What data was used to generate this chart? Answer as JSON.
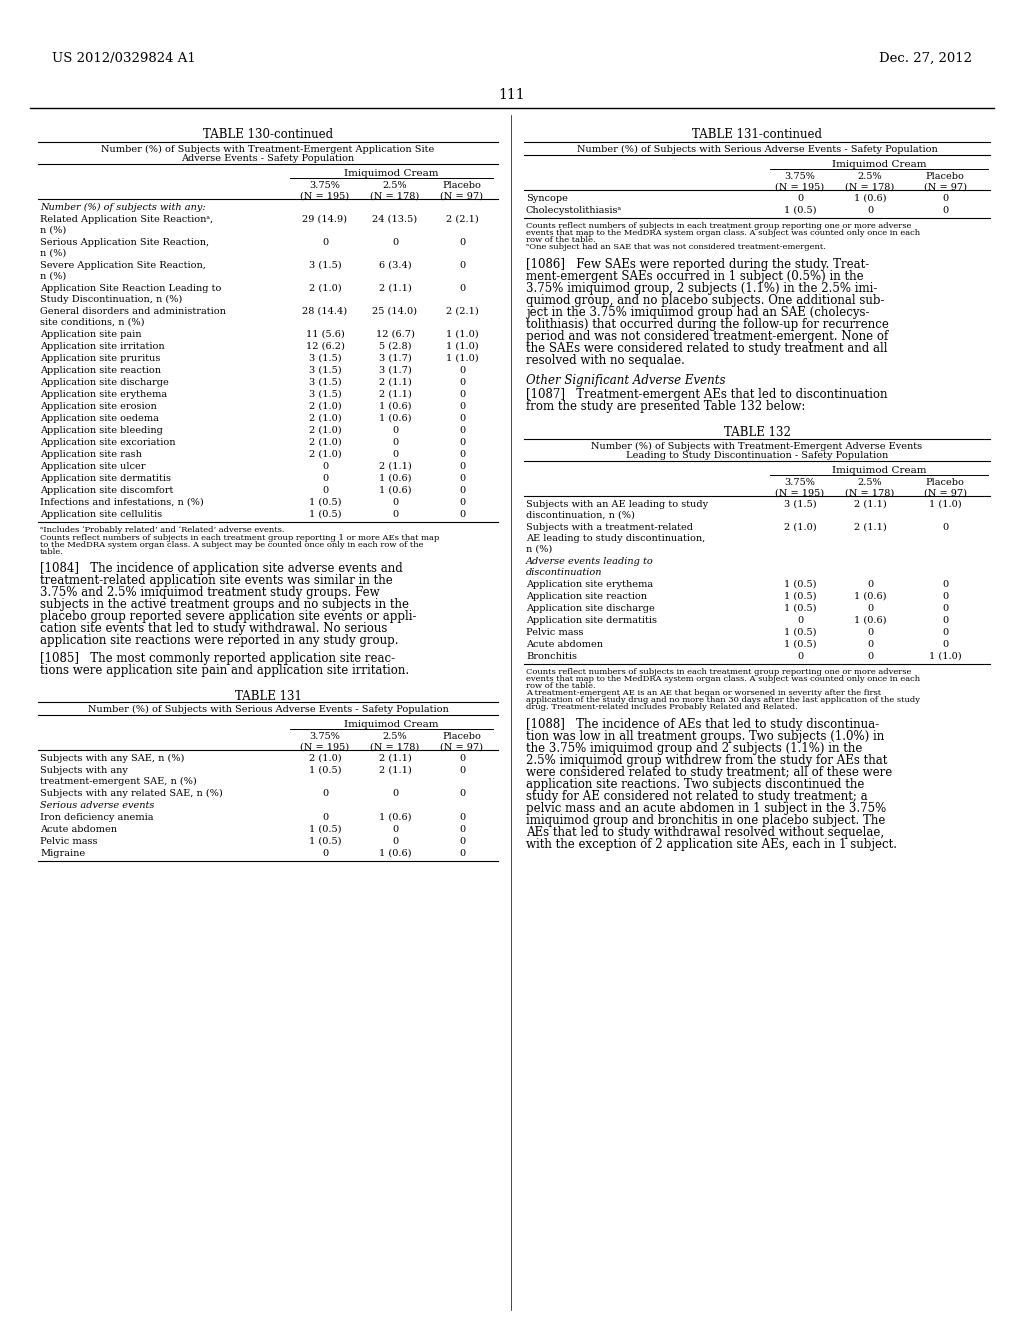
{
  "page_header_left": "US 2012/0329824 A1",
  "page_header_right": "Dec. 27, 2012",
  "page_number": "111",
  "background_color": "#ffffff",
  "left_col": {
    "table130_title": "TABLE 130-continued",
    "table130_sub1": "Number (%) of Subjects with Treatment-Emergent Application Site",
    "table130_sub2": "Adverse Events - Safety Population",
    "cream_header": "Imiquimod Cream",
    "col1_hdr": "3.75%\n(N = 195)",
    "col2_hdr": "2.5%\n(N = 178)",
    "col3_hdr": "Placebo\n(N = 97)",
    "rows130": [
      {
        "label": "Number (%) of subjects with any:",
        "v1": "",
        "v2": "",
        "v3": "",
        "section": true,
        "lines": 1
      },
      {
        "label": "Related Application Site Reactionᵃ,",
        "label2": "n (%)",
        "v1": "29 (14.9)",
        "v2": "24 (13.5)",
        "v3": "2 (2.1)",
        "section": false,
        "lines": 2
      },
      {
        "label": "Serious Application Site Reaction,",
        "label2": "n (%)",
        "v1": "0",
        "v2": "0",
        "v3": "0",
        "section": false,
        "lines": 2
      },
      {
        "label": "Severe Application Site Reaction,",
        "label2": "n (%)",
        "v1": "3 (1.5)",
        "v2": "6 (3.4)",
        "v3": "0",
        "section": false,
        "lines": 2
      },
      {
        "label": "Application Site Reaction Leading to",
        "label2": "Study Discontinuation, n (%)",
        "v1": "2 (1.0)",
        "v2": "2 (1.1)",
        "v3": "0",
        "section": false,
        "lines": 2
      },
      {
        "label": "General disorders and administration",
        "label2": "site conditions, n (%)",
        "v1": "28 (14.4)",
        "v2": "25 (14.0)",
        "v3": "2 (2.1)",
        "section": false,
        "lines": 2
      },
      {
        "label": "Application site pain",
        "label2": "",
        "v1": "11 (5.6)",
        "v2": "12 (6.7)",
        "v3": "1 (1.0)",
        "section": false,
        "lines": 1
      },
      {
        "label": "Application site irritation",
        "label2": "",
        "v1": "12 (6.2)",
        "v2": "5 (2.8)",
        "v3": "1 (1.0)",
        "section": false,
        "lines": 1
      },
      {
        "label": "Application site pruritus",
        "label2": "",
        "v1": "3 (1.5)",
        "v2": "3 (1.7)",
        "v3": "1 (1.0)",
        "section": false,
        "lines": 1
      },
      {
        "label": "Application site reaction",
        "label2": "",
        "v1": "3 (1.5)",
        "v2": "3 (1.7)",
        "v3": "0",
        "section": false,
        "lines": 1
      },
      {
        "label": "Application site discharge",
        "label2": "",
        "v1": "3 (1.5)",
        "v2": "2 (1.1)",
        "v3": "0",
        "section": false,
        "lines": 1
      },
      {
        "label": "Application site erythema",
        "label2": "",
        "v1": "3 (1.5)",
        "v2": "2 (1.1)",
        "v3": "0",
        "section": false,
        "lines": 1
      },
      {
        "label": "Application site erosion",
        "label2": "",
        "v1": "2 (1.0)",
        "v2": "1 (0.6)",
        "v3": "0",
        "section": false,
        "lines": 1
      },
      {
        "label": "Application site oedema",
        "label2": "",
        "v1": "2 (1.0)",
        "v2": "1 (0.6)",
        "v3": "0",
        "section": false,
        "lines": 1
      },
      {
        "label": "Application site bleeding",
        "label2": "",
        "v1": "2 (1.0)",
        "v2": "0",
        "v3": "0",
        "section": false,
        "lines": 1
      },
      {
        "label": "Application site excoriation",
        "label2": "",
        "v1": "2 (1.0)",
        "v2": "0",
        "v3": "0",
        "section": false,
        "lines": 1
      },
      {
        "label": "Application site rash",
        "label2": "",
        "v1": "2 (1.0)",
        "v2": "0",
        "v3": "0",
        "section": false,
        "lines": 1
      },
      {
        "label": "Application site ulcer",
        "label2": "",
        "v1": "0",
        "v2": "2 (1.1)",
        "v3": "0",
        "section": false,
        "lines": 1
      },
      {
        "label": "Application site dermatitis",
        "label2": "",
        "v1": "0",
        "v2": "1 (0.6)",
        "v3": "0",
        "section": false,
        "lines": 1
      },
      {
        "label": "Application site discomfort",
        "label2": "",
        "v1": "0",
        "v2": "1 (0.6)",
        "v3": "0",
        "section": false,
        "lines": 1
      },
      {
        "label": "Infections and infestations, n (%)",
        "label2": "",
        "v1": "1 (0.5)",
        "v2": "0",
        "v3": "0",
        "section": false,
        "lines": 1
      },
      {
        "label": "Application site cellulitis",
        "label2": "",
        "v1": "1 (0.5)",
        "v2": "0",
        "v3": "0",
        "section": false,
        "lines": 1
      }
    ],
    "fn130_a": "ᵃIncludes ‘Probably related’ and ‘Related’ adverse events.",
    "fn130_b1": "Counts reflect numbers of subjects in each treatment group reporting 1 or more AEs that map",
    "fn130_b2": "to the MedDRA system organ class. A subject may be counted once only in each row of the",
    "fn130_b3": "table.",
    "para1084_lines": [
      "[1084]   The incidence of application site adverse events and",
      "treatment-related application site events was similar in the",
      "3.75% and 2.5% imiquimod treatment study groups. Few",
      "subjects in the active treatment groups and no subjects in the",
      "placebo group reported severe application site events or appli-",
      "cation site events that led to study withdrawal. No serious",
      "application site reactions were reported in any study group."
    ],
    "para1085_lines": [
      "[1085]   The most commonly reported application site reac-",
      "tions were application site pain and application site irritation."
    ],
    "table131_title": "TABLE 131",
    "table131_sub": "Number (%) of Subjects with Serious Adverse Events - Safety Population",
    "rows131": [
      {
        "label": "Subjects with any SAE, n (%)",
        "label2": "",
        "v1": "2 (1.0)",
        "v2": "2 (1.1)",
        "v3": "0",
        "section": false,
        "lines": 1
      },
      {
        "label": "Subjects with any",
        "label2": "treatment-emergent SAE, n (%)",
        "v1": "1 (0.5)",
        "v2": "2 (1.1)",
        "v3": "0",
        "section": false,
        "lines": 2
      },
      {
        "label": "Subjects with any related SAE, n (%)",
        "label2": "",
        "v1": "0",
        "v2": "0",
        "v3": "0",
        "section": false,
        "lines": 1
      },
      {
        "label": "Serious adverse events",
        "label2": "",
        "v1": "",
        "v2": "",
        "v3": "",
        "section": true,
        "lines": 1
      },
      {
        "label": "Iron deficiency anemia",
        "label2": "",
        "v1": "0",
        "v2": "1 (0.6)",
        "v3": "0",
        "section": false,
        "lines": 1
      },
      {
        "label": "Acute abdomen",
        "label2": "",
        "v1": "1 (0.5)",
        "v2": "0",
        "v3": "0",
        "section": false,
        "lines": 1
      },
      {
        "label": "Pelvic mass",
        "label2": "",
        "v1": "1 (0.5)",
        "v2": "0",
        "v3": "0",
        "section": false,
        "lines": 1
      },
      {
        "label": "Migraine",
        "label2": "",
        "v1": "0",
        "v2": "1 (0.6)",
        "v3": "0",
        "section": false,
        "lines": 1
      }
    ]
  },
  "right_col": {
    "table131c_title": "TABLE 131-continued",
    "table131c_sub": "Number (%) of Subjects with Serious Adverse Events - Safety Population",
    "cream_header": "Imiquimod Cream",
    "col1_hdr": "3.75%\n(N = 195)",
    "col2_hdr": "2.5%\n(N = 178)",
    "col3_hdr": "Placebo\n(N = 97)",
    "rows131c": [
      {
        "label": "Syncope",
        "v1": "0",
        "v2": "1 (0.6)",
        "v3": "0"
      },
      {
        "label": "Cholecystolithiasisᵃ",
        "v1": "1 (0.5)",
        "v2": "0",
        "v3": "0"
      }
    ],
    "fn131c_1": "Counts reflect numbers of subjects in each treatment group reporting one or more adverse",
    "fn131c_2": "events that map to the MedDRA system organ class. A subject was counted only once in each",
    "fn131c_3": "row of the table.",
    "fn131c_4": "ᵃOne subject had an SAE that was not considered treatment-emergent.",
    "para1086_lines": [
      "[1086]   Few SAEs were reported during the study. Treat-",
      "ment-emergent SAEs occurred in 1 subject (0.5%) in the",
      "3.75% imiquimod group, 2 subjects (1.1%) in the 2.5% imi-",
      "quimod group, and no placebo subjects. One additional sub-",
      "ject in the 3.75% imiquimod group had an SAE (cholecys-",
      "tolithiasis) that occurred during the follow-up for recurrence",
      "period and was not considered treatment-emergent. None of",
      "the SAEs were considered related to study treatment and all",
      "resolved with no sequalae."
    ],
    "other_sig": "Other Significant Adverse Events",
    "para1087_lines": [
      "[1087]   Treatment-emergent AEs that led to discontinuation",
      "from the study are presented Table 132 below:"
    ],
    "table132_title": "TABLE 132",
    "table132_sub1": "Number (%) of Subjects with Treatment-Emergent Adverse Events",
    "table132_sub2": "Leading to Study Discontinuation - Safety Population",
    "rows132": [
      {
        "label": "Subjects with an AE leading to study",
        "label2": "discontinuation, n (%)",
        "v1": "3 (1.5)",
        "v2": "2 (1.1)",
        "v3": "1 (1.0)",
        "section": false,
        "lines": 2
      },
      {
        "label": "Subjects with a treatment-related",
        "label2": "AE leading to study discontinuation,",
        "label3": "n (%)",
        "v1": "2 (1.0)",
        "v2": "2 (1.1)",
        "v3": "0",
        "section": false,
        "lines": 3
      },
      {
        "label": "Adverse events leading to",
        "label2": "discontinuation",
        "v1": "",
        "v2": "",
        "v3": "",
        "section": true,
        "lines": 2
      },
      {
        "label": "Application site erythema",
        "label2": "",
        "v1": "1 (0.5)",
        "v2": "0",
        "v3": "0",
        "section": false,
        "lines": 1
      },
      {
        "label": "Application site reaction",
        "label2": "",
        "v1": "1 (0.5)",
        "v2": "1 (0.6)",
        "v3": "0",
        "section": false,
        "lines": 1
      },
      {
        "label": "Application site discharge",
        "label2": "",
        "v1": "1 (0.5)",
        "v2": "0",
        "v3": "0",
        "section": false,
        "lines": 1
      },
      {
        "label": "Application site dermatitis",
        "label2": "",
        "v1": "0",
        "v2": "1 (0.6)",
        "v3": "0",
        "section": false,
        "lines": 1
      },
      {
        "label": "Pelvic mass",
        "label2": "",
        "v1": "1 (0.5)",
        "v2": "0",
        "v3": "0",
        "section": false,
        "lines": 1
      },
      {
        "label": "Acute abdomen",
        "label2": "",
        "v1": "1 (0.5)",
        "v2": "0",
        "v3": "0",
        "section": false,
        "lines": 1
      },
      {
        "label": "Bronchitis",
        "label2": "",
        "v1": "0",
        "v2": "0",
        "v3": "1 (1.0)",
        "section": false,
        "lines": 1
      }
    ],
    "fn132_1": "Counts reflect numbers of subjects in each treatment group reporting one or more adverse",
    "fn132_2": "events that map to the MedDRA system organ class. A subject was counted only once in each",
    "fn132_3": "row of the table.",
    "fn132_4": "A treatment-emergent AE is an AE that began or worsened in severity after the first",
    "fn132_5": "application of the study drug and no more than 30 days after the last application of the study",
    "fn132_6": "drug. Treatment-related includes Probably Related and Related.",
    "para1088_lines": [
      "[1088]   The incidence of AEs that led to study discontinua-",
      "tion was low in all treatment groups. Two subjects (1.0%) in",
      "the 3.75% imiquimod group and 2 subjects (1.1%) in the",
      "2.5% imiquimod group withdrew from the study for AEs that",
      "were considered related to study treatment; all of these were",
      "application site reactions. Two subjects discontinued the",
      "study for AE considered not related to study treatment; a",
      "pelvic mass and an acute abdomen in 1 subject in the 3.75%",
      "imiquimod group and bronchitis in one placebo subject. The",
      "AEs that led to study withdrawal resolved without sequelae,",
      "with the exception of 2 application site AEs, each in 1 subject."
    ]
  }
}
